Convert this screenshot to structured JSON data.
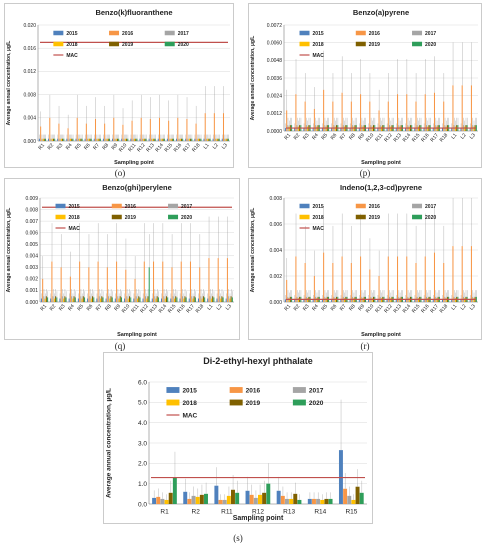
{
  "legend_labels": [
    "2015",
    "2016",
    "2017",
    "2018",
    "2019",
    "2020",
    "MAC"
  ],
  "colors": {
    "2015": "#4f81bd",
    "2016": "#f79646",
    "2017": "#a5a5a5",
    "2018": "#ffc000",
    "2019": "#7f6000",
    "2020": "#2e9e5a",
    "MAC": "#c0504d"
  },
  "chart_data": [
    {
      "id": "o",
      "caption": "(o)",
      "type": "bar",
      "title": "Benzo(k)fluoranthene",
      "xlabel": "Sampling point",
      "ylabel": "Average annual concentration, µg/L",
      "ylim": [
        0,
        0.02
      ],
      "yticks": [
        "0.000",
        "0.004",
        "0.008",
        "0.012",
        "0.016",
        "0.020"
      ],
      "categories": [
        "R1",
        "R2",
        "R3",
        "R4",
        "R5",
        "R6",
        "R7",
        "R8",
        "R9",
        "R10",
        "R11",
        "R12",
        "R13",
        "R14",
        "R15",
        "R16",
        "R17",
        "R18",
        "L1",
        "L2",
        "L3"
      ],
      "mac": 0.017,
      "series": [
        {
          "name": "2015",
          "values": [
            0.0004,
            0.0004,
            0.0004,
            0.0004,
            0.0004,
            0.0004,
            0.0004,
            0.0004,
            0.0004,
            0.0004,
            0.0004,
            0.0004,
            0.0004,
            0.0004,
            0.0004,
            0.0004,
            0.0004,
            0.0004,
            0.0004,
            0.0004,
            0.0004
          ]
        },
        {
          "name": "2016",
          "values": [
            0.0025,
            0.004,
            0.003,
            0.0022,
            0.004,
            0.003,
            0.0038,
            0.003,
            0.004,
            0.0028,
            0.0035,
            0.004,
            0.0038,
            0.004,
            0.0035,
            0.004,
            0.0038,
            0.003,
            0.0048,
            0.0048,
            0.0048
          ]
        },
        {
          "name": "2017",
          "values": [
            0.0004,
            0.0004,
            0.0004,
            0.0004,
            0.0004,
            0.0004,
            0.0004,
            0.0004,
            0.0004,
            0.0004,
            0.0004,
            0.0004,
            0.0004,
            0.0004,
            0.0004,
            0.0004,
            0.0004,
            0.0004,
            0.0004,
            0.0004,
            0.0004
          ]
        },
        {
          "name": "2018",
          "values": [
            0.0004,
            0.0004,
            0.0004,
            0.0004,
            0.0004,
            0.0004,
            0.0004,
            0.0004,
            0.0004,
            0.0004,
            0.0004,
            0.0004,
            0.0004,
            0.0004,
            0.0004,
            0.0004,
            0.0004,
            0.0004,
            0.0004,
            0.0004,
            0.0004
          ]
        },
        {
          "name": "2019",
          "values": [
            0.0004,
            0.0004,
            0.0004,
            0.0004,
            0.0004,
            0.0004,
            0.0004,
            0.0004,
            0.0004,
            0.0004,
            0.0004,
            0.0004,
            0.0004,
            0.0004,
            0.0004,
            0.0004,
            0.0004,
            0.0004,
            0.0004,
            0.0004,
            0.0004
          ]
        },
        {
          "name": "2020",
          "values": [
            0.0004,
            0.0004,
            0.0004,
            0.0004,
            0.0004,
            0.0004,
            0.0004,
            0.0004,
            0.0004,
            0.0004,
            0.0004,
            0.0004,
            0.0004,
            0.0004,
            0.0004,
            0.0004,
            0.0004,
            0.0004,
            0.0004,
            0.0004,
            0.0004
          ]
        }
      ]
    },
    {
      "id": "p",
      "caption": "(p)",
      "type": "bar",
      "title": "Benzo(a)pyrene",
      "xlabel": "Sampling point",
      "ylabel": "Average annual concentration, µg/L",
      "ylim": [
        0,
        0.0072
      ],
      "yticks": [
        "0.0000",
        "0.0012",
        "0.0024",
        "0.0036",
        "0.0048",
        "0.0060",
        "0.0072"
      ],
      "categories": [
        "R1",
        "R2",
        "R3",
        "R4",
        "R5",
        "R6",
        "R7",
        "R8",
        "R9",
        "R10",
        "R11",
        "R12",
        "R13",
        "R14",
        "R15",
        "R16",
        "R17",
        "R18",
        "L1",
        "L2",
        "L3"
      ],
      "mac": 0.0002,
      "series": [
        {
          "name": "2015",
          "values": [
            0.0002,
            0.0002,
            0.0002,
            0.0002,
            0.0002,
            0.0002,
            0.0002,
            0.0002,
            0.0002,
            0.0002,
            0.0002,
            0.0002,
            0.0002,
            0.0002,
            0.0002,
            0.0002,
            0.0002,
            0.0002,
            0.0002,
            0.0002,
            0.0002
          ]
        },
        {
          "name": "2016",
          "values": [
            0.0014,
            0.0025,
            0.002,
            0.0015,
            0.0028,
            0.002,
            0.0026,
            0.002,
            0.0025,
            0.002,
            0.0014,
            0.002,
            0.0025,
            0.0025,
            0.002,
            0.0025,
            0.0026,
            0.002,
            0.0031,
            0.0031,
            0.0031
          ]
        },
        {
          "name": "2017",
          "values": [
            0.0004,
            0.0004,
            0.0004,
            0.0004,
            0.0004,
            0.0004,
            0.0004,
            0.0004,
            0.0004,
            0.0004,
            0.0004,
            0.0004,
            0.0004,
            0.0004,
            0.0004,
            0.0004,
            0.0004,
            0.0004,
            0.0004,
            0.0004,
            0.0004
          ]
        },
        {
          "name": "2018",
          "values": [
            0.0003,
            0.0003,
            0.0003,
            0.0003,
            0.0003,
            0.0003,
            0.0003,
            0.0003,
            0.0003,
            0.0003,
            0.0003,
            0.0003,
            0.0003,
            0.0003,
            0.0003,
            0.0003,
            0.0003,
            0.0003,
            0.0003,
            0.0003,
            0.0003
          ]
        },
        {
          "name": "2019",
          "values": [
            0.0004,
            0.0004,
            0.0004,
            0.0004,
            0.0004,
            0.0004,
            0.0004,
            0.0004,
            0.0004,
            0.0004,
            0.0004,
            0.0004,
            0.0004,
            0.0004,
            0.0004,
            0.0004,
            0.0004,
            0.0004,
            0.0004,
            0.0004,
            0.0004
          ]
        },
        {
          "name": "2020",
          "values": [
            0.0004,
            0.0004,
            0.0004,
            0.0004,
            0.0004,
            0.0004,
            0.0004,
            0.0004,
            0.0004,
            0.0004,
            0.0004,
            0.0004,
            0.0004,
            0.0004,
            0.0004,
            0.0004,
            0.0004,
            0.0004,
            0.0004,
            0.0004,
            0.0004
          ]
        }
      ]
    },
    {
      "id": "q",
      "caption": "(q)",
      "type": "bar",
      "title": "Benzo(ghi)perylene",
      "xlabel": "Sampling point",
      "ylabel": "Average annual concentration, µg/L",
      "ylim": [
        0,
        0.009
      ],
      "yticks": [
        "0.000",
        "0.001",
        "0.002",
        "0.003",
        "0.004",
        "0.005",
        "0.006",
        "0.007",
        "0.008",
        "0.009"
      ],
      "categories": [
        "R1",
        "R2",
        "R3",
        "R4",
        "R5",
        "R6",
        "R7",
        "R8",
        "R9",
        "R10",
        "R11",
        "R12",
        "R13",
        "R14",
        "R15",
        "R16",
        "R17",
        "R18",
        "L1",
        "L2",
        "L3"
      ],
      "mac": 0.0082,
      "series": [
        {
          "name": "2015",
          "values": [
            0.0003,
            0.0003,
            0.0003,
            0.0003,
            0.0003,
            0.0003,
            0.0003,
            0.0003,
            0.0003,
            0.0003,
            0.0003,
            0.0003,
            0.0003,
            0.0003,
            0.0003,
            0.0003,
            0.0003,
            0.0003,
            0.0003,
            0.0003,
            0.0003
          ]
        },
        {
          "name": "2016",
          "values": [
            0.002,
            0.0035,
            0.003,
            0.0022,
            0.0035,
            0.003,
            0.0035,
            0.003,
            0.0035,
            0.0028,
            0.002,
            0.0035,
            0.0035,
            0.0035,
            0.003,
            0.0035,
            0.0035,
            0.003,
            0.0038,
            0.0038,
            0.0038
          ]
        },
        {
          "name": "2017",
          "values": [
            0.0005,
            0.0005,
            0.0005,
            0.0005,
            0.0005,
            0.0005,
            0.0005,
            0.0005,
            0.0005,
            0.0005,
            0.0005,
            0.0005,
            0.0005,
            0.0005,
            0.0005,
            0.0005,
            0.0005,
            0.0005,
            0.0005,
            0.0005,
            0.0005
          ]
        },
        {
          "name": "2018",
          "values": [
            0.0003,
            0.0003,
            0.0003,
            0.0003,
            0.0003,
            0.0003,
            0.0003,
            0.0003,
            0.0003,
            0.0003,
            0.0003,
            0.0003,
            0.0003,
            0.0003,
            0.0003,
            0.0003,
            0.0003,
            0.0003,
            0.0003,
            0.0003,
            0.0003
          ]
        },
        {
          "name": "2019",
          "values": [
            0.0005,
            0.0005,
            0.0005,
            0.0005,
            0.0005,
            0.0005,
            0.0005,
            0.0005,
            0.0005,
            0.0005,
            0.0005,
            0.0005,
            0.0005,
            0.0005,
            0.0005,
            0.0005,
            0.0005,
            0.0005,
            0.0005,
            0.0005,
            0.0005
          ]
        },
        {
          "name": "2020",
          "values": [
            0.0004,
            0.0004,
            0.0004,
            0.0004,
            0.0004,
            0.0004,
            0.0004,
            0.0004,
            0.0004,
            0.0004,
            0.0004,
            0.003,
            0.0004,
            0.0004,
            0.0004,
            0.0004,
            0.0004,
            0.0004,
            0.0004,
            0.0004,
            0.0004
          ]
        }
      ]
    },
    {
      "id": "r",
      "caption": "(r)",
      "type": "bar",
      "title": "Indeno(1,2,3-cd)pyrene",
      "xlabel": "Sampling point",
      "ylabel": "Average annual concentration, µg/L",
      "ylim": [
        0,
        0.008
      ],
      "yticks": [
        "0.000",
        "0.002",
        "0.004",
        "0.006",
        "0.008"
      ],
      "categories": [
        "R1",
        "R2",
        "R3",
        "R4",
        "R5",
        "R6",
        "R7",
        "R8",
        "R9",
        "R10",
        "R11",
        "R12",
        "R13",
        "R14",
        "R15",
        "R16",
        "R17",
        "R18",
        "L1",
        "L2",
        "L3"
      ],
      "mac": 0.0002,
      "series": [
        {
          "name": "2015",
          "values": [
            0.0002,
            0.0002,
            0.0002,
            0.0002,
            0.0002,
            0.0002,
            0.0002,
            0.0002,
            0.0002,
            0.0002,
            0.0002,
            0.0002,
            0.0002,
            0.0002,
            0.0002,
            0.0002,
            0.0002,
            0.0002,
            0.0002,
            0.0002,
            0.0002
          ]
        },
        {
          "name": "2016",
          "values": [
            0.0017,
            0.0035,
            0.003,
            0.002,
            0.0038,
            0.003,
            0.0035,
            0.003,
            0.0035,
            0.0025,
            0.002,
            0.0035,
            0.0035,
            0.0035,
            0.003,
            0.0035,
            0.0038,
            0.003,
            0.0043,
            0.0043,
            0.0043
          ]
        },
        {
          "name": "2017",
          "values": [
            0.0004,
            0.0004,
            0.0004,
            0.0004,
            0.0004,
            0.0004,
            0.0004,
            0.0004,
            0.0004,
            0.0004,
            0.0004,
            0.0004,
            0.0004,
            0.0004,
            0.0004,
            0.0004,
            0.0004,
            0.0004,
            0.0004,
            0.0004,
            0.0004
          ]
        },
        {
          "name": "2018",
          "values": [
            0.0003,
            0.0003,
            0.0003,
            0.0003,
            0.0003,
            0.0003,
            0.0003,
            0.0003,
            0.0003,
            0.0003,
            0.0003,
            0.0003,
            0.0003,
            0.0003,
            0.0003,
            0.0003,
            0.0003,
            0.0003,
            0.0003,
            0.0003,
            0.0003
          ]
        },
        {
          "name": "2019",
          "values": [
            0.0004,
            0.0004,
            0.0004,
            0.0004,
            0.0004,
            0.0004,
            0.0004,
            0.0004,
            0.0004,
            0.0004,
            0.0004,
            0.0004,
            0.0004,
            0.0004,
            0.0004,
            0.0004,
            0.0004,
            0.0004,
            0.0004,
            0.0004,
            0.0004
          ]
        },
        {
          "name": "2020",
          "values": [
            0.0004,
            0.0004,
            0.0004,
            0.0004,
            0.0004,
            0.0004,
            0.0004,
            0.0004,
            0.0004,
            0.0004,
            0.0004,
            0.0004,
            0.0004,
            0.0004,
            0.0004,
            0.0004,
            0.0004,
            0.0004,
            0.0004,
            0.0004,
            0.0004
          ]
        }
      ]
    },
    {
      "id": "s",
      "caption": "(s)",
      "type": "bar",
      "title": "Di-2-ethyl-hexyl phthalate",
      "xlabel": "Sampling point",
      "ylabel": "Average annual concentration, µg/L",
      "ylim": [
        0,
        6.0
      ],
      "yticks": [
        "0.0",
        "1.0",
        "2.0",
        "3.0",
        "4.0",
        "5.0",
        "6.0"
      ],
      "categories": [
        "R1",
        "R2",
        "R11",
        "R12",
        "R13",
        "R14",
        "R15"
      ],
      "mac": 1.3,
      "series": [
        {
          "name": "2015",
          "values": [
            0.3,
            0.6,
            0.9,
            0.65,
            0.65,
            0.25,
            2.65
          ]
        },
        {
          "name": "2016",
          "values": [
            0.35,
            0.25,
            0.2,
            0.45,
            0.4,
            0.25,
            0.75
          ]
        },
        {
          "name": "2017",
          "values": [
            0.25,
            0.4,
            0.2,
            0.3,
            0.25,
            0.25,
            0.4
          ]
        },
        {
          "name": "2018",
          "values": [
            0.2,
            0.35,
            0.4,
            0.45,
            0.25,
            0.2,
            0.2
          ]
        },
        {
          "name": "2019",
          "values": [
            0.55,
            0.45,
            0.7,
            0.55,
            0.5,
            0.25,
            0.85
          ]
        },
        {
          "name": "2020",
          "values": [
            1.3,
            0.5,
            0.55,
            1.0,
            0.2,
            0.25,
            0.55
          ]
        }
      ]
    }
  ]
}
